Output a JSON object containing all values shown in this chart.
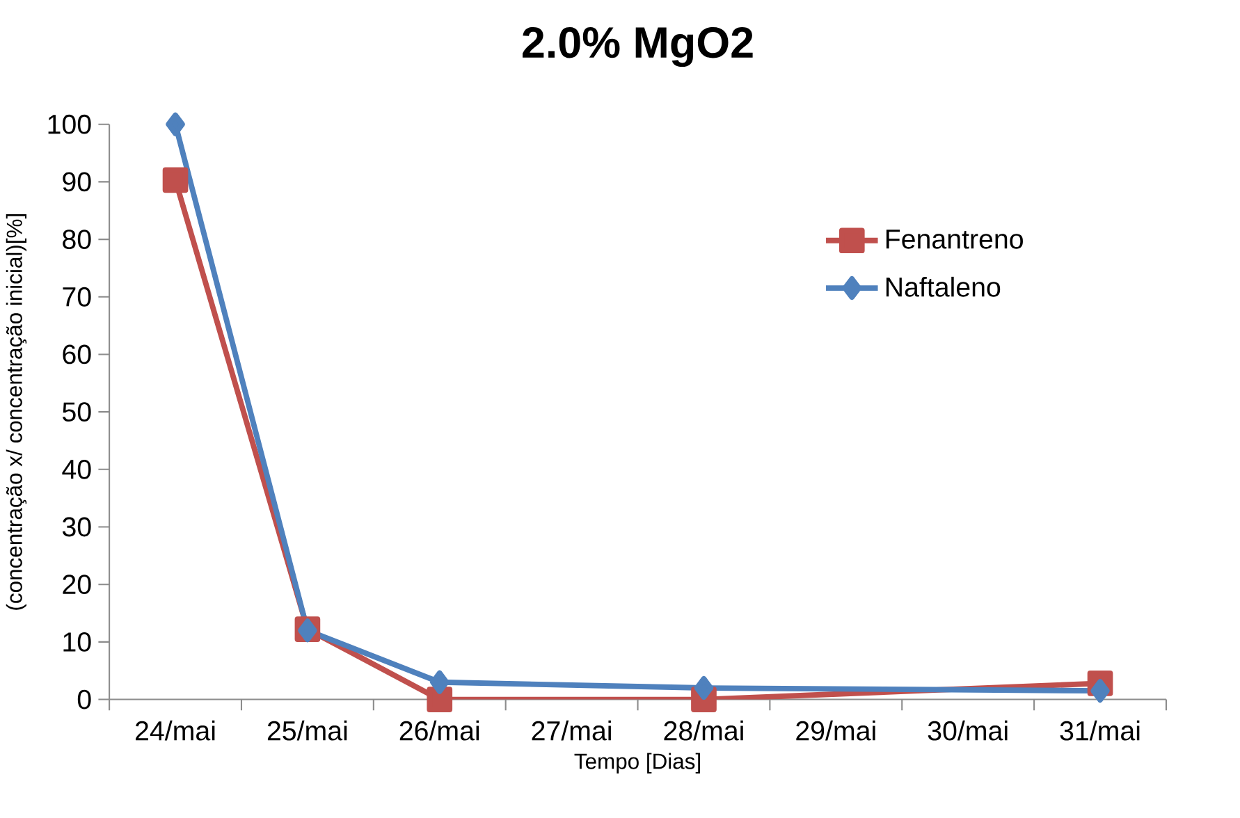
{
  "chart_data": {
    "type": "line",
    "title": "2.0% MgO2",
    "xlabel": "Tempo [Dias]",
    "ylabel": "(concentração x/ concentração inicial)[%]",
    "categories": [
      "24/mai",
      "25/mai",
      "26/mai",
      "27/mai",
      "28/mai",
      "29/mai",
      "30/mai",
      "31/mai"
    ],
    "series": [
      {
        "name": "Fenantreno",
        "color": "#c0504d",
        "marker": "square",
        "values": [
          90.3,
          12.2,
          0,
          null,
          0,
          null,
          null,
          2.8
        ]
      },
      {
        "name": "Naftaleno",
        "color": "#4f81bd",
        "marker": "diamond",
        "values": [
          100,
          12,
          3,
          null,
          2,
          null,
          null,
          1.5
        ]
      }
    ],
    "ylim": [
      0,
      100
    ],
    "yticks": [
      0,
      10,
      20,
      30,
      40,
      50,
      60,
      70,
      80,
      90,
      100
    ],
    "grid": false,
    "legend": "top right",
    "line_style": "solid"
  }
}
